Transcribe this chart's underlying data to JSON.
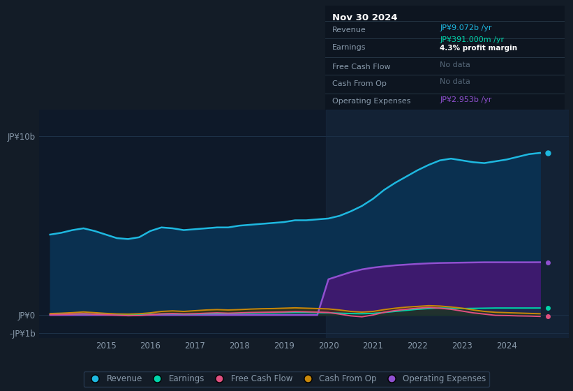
{
  "background_color": "#131c27",
  "chart_area_color": "#0e1929",
  "box_bg": "#0d1520",
  "text_color": "#8899aa",
  "grid_color": "#1e3248",
  "revenue_color": "#1eb8e0",
  "earnings_color": "#00d4aa",
  "fcf_color": "#e05080",
  "cop_color": "#c8880a",
  "opex_color": "#9050d0",
  "revenue_fill": "#0a3050",
  "opex_fill": "#3d1a6e",
  "ylim": [
    -1.3,
    11.5
  ],
  "xlim_start": 2013.5,
  "xlim_end": 2025.4,
  "xtick_years": [
    2015,
    2016,
    2017,
    2018,
    2019,
    2020,
    2021,
    2022,
    2023,
    2024
  ],
  "years": [
    2013.75,
    2014.0,
    2014.25,
    2014.5,
    2014.75,
    2015.0,
    2015.25,
    2015.5,
    2015.75,
    2016.0,
    2016.25,
    2016.5,
    2016.75,
    2017.0,
    2017.25,
    2017.5,
    2017.75,
    2018.0,
    2018.25,
    2018.5,
    2018.75,
    2019.0,
    2019.25,
    2019.5,
    2019.75,
    2020.0,
    2020.25,
    2020.5,
    2020.75,
    2021.0,
    2021.25,
    2021.5,
    2021.75,
    2022.0,
    2022.25,
    2022.5,
    2022.75,
    2023.0,
    2023.25,
    2023.5,
    2023.75,
    2024.0,
    2024.25,
    2024.5,
    2024.75
  ],
  "revenue": [
    4.5,
    4.6,
    4.75,
    4.85,
    4.7,
    4.5,
    4.3,
    4.25,
    4.35,
    4.7,
    4.9,
    4.85,
    4.75,
    4.8,
    4.85,
    4.9,
    4.9,
    5.0,
    5.05,
    5.1,
    5.15,
    5.2,
    5.3,
    5.3,
    5.35,
    5.4,
    5.55,
    5.8,
    6.1,
    6.5,
    7.0,
    7.4,
    7.75,
    8.1,
    8.4,
    8.65,
    8.75,
    8.65,
    8.55,
    8.5,
    8.6,
    8.7,
    8.85,
    9.0,
    9.07
  ],
  "earnings": [
    0.04,
    0.05,
    0.06,
    0.07,
    0.05,
    0.04,
    0.02,
    0.01,
    0.02,
    0.04,
    0.06,
    0.07,
    0.05,
    0.06,
    0.07,
    0.08,
    0.08,
    0.09,
    0.1,
    0.11,
    0.12,
    0.13,
    0.14,
    0.14,
    0.13,
    0.12,
    0.1,
    0.08,
    0.07,
    0.09,
    0.14,
    0.2,
    0.26,
    0.32,
    0.36,
    0.39,
    0.38,
    0.36,
    0.37,
    0.38,
    0.39,
    0.39,
    0.39,
    0.39,
    0.391
  ],
  "fcf": [
    0.02,
    0.03,
    0.05,
    0.07,
    0.04,
    0.02,
    -0.01,
    -0.04,
    -0.03,
    0.02,
    0.06,
    0.08,
    0.06,
    0.07,
    0.1,
    0.12,
    0.1,
    0.12,
    0.14,
    0.15,
    0.16,
    0.17,
    0.19,
    0.18,
    0.16,
    0.14,
    0.05,
    -0.05,
    -0.1,
    0.0,
    0.15,
    0.25,
    0.32,
    0.38,
    0.42,
    0.38,
    0.32,
    0.22,
    0.12,
    0.05,
    -0.02,
    -0.03,
    -0.05,
    -0.06,
    -0.08
  ],
  "cop": [
    0.08,
    0.1,
    0.13,
    0.17,
    0.13,
    0.09,
    0.06,
    0.05,
    0.07,
    0.12,
    0.2,
    0.23,
    0.2,
    0.24,
    0.28,
    0.3,
    0.28,
    0.3,
    0.33,
    0.35,
    0.36,
    0.38,
    0.4,
    0.38,
    0.36,
    0.34,
    0.28,
    0.2,
    0.16,
    0.2,
    0.3,
    0.38,
    0.44,
    0.48,
    0.52,
    0.5,
    0.45,
    0.38,
    0.28,
    0.2,
    0.15,
    0.13,
    0.11,
    0.09,
    0.07
  ],
  "opex": [
    0.0,
    0.0,
    0.0,
    0.0,
    0.0,
    0.0,
    0.0,
    0.0,
    0.0,
    0.0,
    0.0,
    0.0,
    0.0,
    0.0,
    0.0,
    0.0,
    0.0,
    0.0,
    0.0,
    0.0,
    0.0,
    0.0,
    0.0,
    0.0,
    0.0,
    2.0,
    2.2,
    2.4,
    2.55,
    2.65,
    2.72,
    2.78,
    2.82,
    2.86,
    2.89,
    2.91,
    2.92,
    2.93,
    2.94,
    2.95,
    2.95,
    2.95,
    2.95,
    2.95,
    2.953
  ],
  "highlight_x_start": 2019.95,
  "info_box": {
    "date": "Nov 30 2024",
    "rows": [
      {
        "label": "Revenue",
        "value": "JP¥9.072b /yr",
        "value_color": "#1eb8e0",
        "sub": null
      },
      {
        "label": "Earnings",
        "value": "JP¥391.000m /yr",
        "value_color": "#00d4aa",
        "sub": "4.3% profit margin"
      },
      {
        "label": "Free Cash Flow",
        "value": "No data",
        "value_color": "#556677",
        "sub": null
      },
      {
        "label": "Cash From Op",
        "value": "No data",
        "value_color": "#556677",
        "sub": null
      },
      {
        "label": "Operating Expenses",
        "value": "JP¥2.953b /yr",
        "value_color": "#9050d0",
        "sub": null
      }
    ]
  },
  "legend": [
    {
      "label": "Revenue",
      "color": "#1eb8e0"
    },
    {
      "label": "Earnings",
      "color": "#00d4aa"
    },
    {
      "label": "Free Cash Flow",
      "color": "#e05080"
    },
    {
      "label": "Cash From Op",
      "color": "#c8880a"
    },
    {
      "label": "Operating Expenses",
      "color": "#9050d0"
    }
  ]
}
